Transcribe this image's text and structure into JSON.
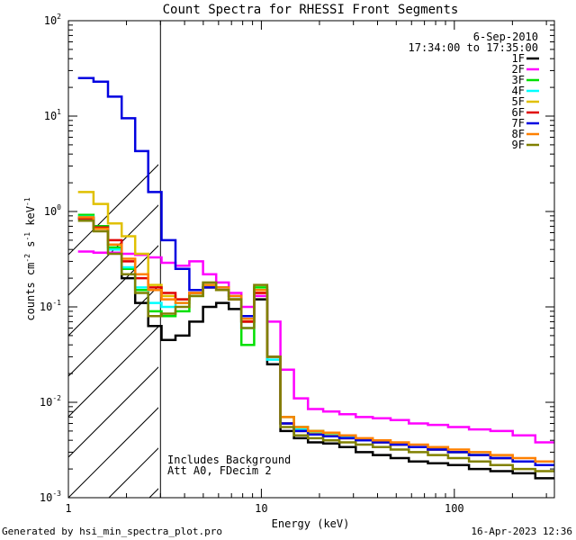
{
  "chart_data": {
    "type": "line",
    "title": "Count Spectra for RHESSI Front Segments",
    "xlabel": "Energy (keV)",
    "ylabel": "counts cm",
    "ylabel_sup1": "-2",
    "ylabel_mid": " s",
    "ylabel_sup2": "-1",
    "ylabel_end": " keV",
    "ylabel_sup3": "-1",
    "x_scale": "log",
    "y_scale": "log",
    "xlim": [
      1,
      330
    ],
    "ylim": [
      0.001,
      100
    ],
    "x_ticks": [
      {
        "value": 1,
        "label": "1"
      },
      {
        "value": 10,
        "label": "10"
      },
      {
        "value": 100,
        "label": "100"
      }
    ],
    "y_ticks": [
      {
        "value": 0.001,
        "base": "10",
        "exp": "-3"
      },
      {
        "value": 0.01,
        "base": "10",
        "exp": "-2"
      },
      {
        "value": 0.1,
        "base": "10",
        "exp": "-1"
      },
      {
        "value": 1,
        "base": "10",
        "exp": "0"
      },
      {
        "value": 10,
        "base": "10",
        "exp": "1"
      },
      {
        "value": 100,
        "base": "10",
        "exp": "2"
      }
    ],
    "hatch_region": [
      1,
      3
    ],
    "date_label": "6-Sep-2010",
    "time_label": "17:34:00 to 17:35:00",
    "annotations": [
      "Includes Background",
      "Att A0, FDecim 2"
    ],
    "footer_left": "Generated by hsi_min_spectra_plot.pro",
    "footer_right": "16-Apr-2023 12:36",
    "legend_position": "top-right",
    "series": [
      {
        "name": "1F",
        "color": "#000000",
        "values": [
          [
            1.23,
            0.85
          ],
          [
            1.48,
            0.7
          ],
          [
            1.74,
            0.45
          ],
          [
            2.05,
            0.2
          ],
          [
            2.4,
            0.11
          ],
          [
            2.8,
            0.063
          ],
          [
            3.3,
            0.045
          ],
          [
            3.9,
            0.05
          ],
          [
            4.6,
            0.07
          ],
          [
            5.4,
            0.1
          ],
          [
            6.3,
            0.11
          ],
          [
            7.3,
            0.095
          ],
          [
            8.5,
            0.07
          ],
          [
            9.9,
            0.12
          ],
          [
            11.6,
            0.025
          ],
          [
            13.6,
            0.005
          ],
          [
            16,
            0.0042
          ],
          [
            19,
            0.0038
          ],
          [
            23,
            0.0037
          ],
          [
            28,
            0.0034
          ],
          [
            34,
            0.003
          ],
          [
            42,
            0.0028
          ],
          [
            52,
            0.0026
          ],
          [
            65,
            0.0024
          ],
          [
            82,
            0.0023
          ],
          [
            105,
            0.0022
          ],
          [
            135,
            0.002
          ],
          [
            175,
            0.0019
          ],
          [
            230,
            0.0018
          ],
          [
            300,
            0.0016
          ]
        ]
      },
      {
        "name": "2F",
        "color": "#ff00ff",
        "values": [
          [
            1.23,
            0.38
          ],
          [
            1.48,
            0.37
          ],
          [
            1.74,
            0.37
          ],
          [
            2.05,
            0.36
          ],
          [
            2.4,
            0.35
          ],
          [
            2.8,
            0.33
          ],
          [
            3.3,
            0.29
          ],
          [
            3.9,
            0.27
          ],
          [
            4.6,
            0.3
          ],
          [
            5.4,
            0.22
          ],
          [
            6.3,
            0.18
          ],
          [
            7.3,
            0.14
          ],
          [
            8.5,
            0.1
          ],
          [
            9.9,
            0.13
          ],
          [
            11.6,
            0.07
          ],
          [
            13.6,
            0.022
          ],
          [
            16,
            0.011
          ],
          [
            19,
            0.0085
          ],
          [
            23,
            0.008
          ],
          [
            28,
            0.0075
          ],
          [
            34,
            0.007
          ],
          [
            42,
            0.0068
          ],
          [
            52,
            0.0065
          ],
          [
            65,
            0.006
          ],
          [
            82,
            0.0058
          ],
          [
            105,
            0.0055
          ],
          [
            135,
            0.0052
          ],
          [
            175,
            0.005
          ],
          [
            230,
            0.0045
          ],
          [
            300,
            0.0038
          ]
        ]
      },
      {
        "name": "3F",
        "color": "#00e000",
        "values": [
          [
            1.23,
            0.92
          ],
          [
            1.48,
            0.7
          ],
          [
            1.74,
            0.42
          ],
          [
            2.05,
            0.25
          ],
          [
            2.4,
            0.15
          ],
          [
            2.8,
            0.09
          ],
          [
            3.3,
            0.08
          ],
          [
            3.9,
            0.09
          ],
          [
            4.6,
            0.13
          ],
          [
            5.4,
            0.16
          ],
          [
            6.3,
            0.15
          ],
          [
            7.3,
            0.12
          ],
          [
            8.5,
            0.04
          ],
          [
            9.9,
            0.16
          ],
          [
            11.6,
            0.03
          ],
          [
            13.6,
            0.007
          ],
          [
            16,
            0.0055
          ],
          [
            19,
            0.005
          ],
          [
            23,
            0.0047
          ],
          [
            28,
            0.0044
          ],
          [
            34,
            0.004
          ],
          [
            42,
            0.0038
          ],
          [
            52,
            0.0036
          ],
          [
            65,
            0.0034
          ],
          [
            82,
            0.0032
          ],
          [
            105,
            0.003
          ],
          [
            135,
            0.0028
          ],
          [
            175,
            0.0026
          ],
          [
            230,
            0.0024
          ],
          [
            300,
            0.0022
          ]
        ]
      },
      {
        "name": "4F",
        "color": "#00ffff",
        "values": [
          [
            1.23,
            0.88
          ],
          [
            1.48,
            0.68
          ],
          [
            1.74,
            0.4
          ],
          [
            2.05,
            0.26
          ],
          [
            2.4,
            0.16
          ],
          [
            2.8,
            0.11
          ],
          [
            3.3,
            0.1
          ],
          [
            3.9,
            0.11
          ],
          [
            4.6,
            0.14
          ],
          [
            5.4,
            0.17
          ],
          [
            6.3,
            0.16
          ],
          [
            7.3,
            0.13
          ],
          [
            8.5,
            0.06
          ],
          [
            9.9,
            0.15
          ],
          [
            11.6,
            0.028
          ],
          [
            13.6,
            0.006
          ],
          [
            16,
            0.0052
          ],
          [
            19,
            0.0048
          ],
          [
            23,
            0.0046
          ],
          [
            28,
            0.0043
          ],
          [
            34,
            0.004
          ],
          [
            42,
            0.0038
          ],
          [
            52,
            0.0036
          ],
          [
            65,
            0.0034
          ],
          [
            82,
            0.0032
          ],
          [
            105,
            0.003
          ],
          [
            135,
            0.0028
          ],
          [
            175,
            0.0026
          ],
          [
            230,
            0.0024
          ],
          [
            300,
            0.0022
          ]
        ]
      },
      {
        "name": "5F",
        "color": "#e0c000",
        "values": [
          [
            1.23,
            1.6
          ],
          [
            1.48,
            1.2
          ],
          [
            1.74,
            0.75
          ],
          [
            2.05,
            0.55
          ],
          [
            2.4,
            0.36
          ],
          [
            2.8,
            0.17
          ],
          [
            3.3,
            0.13
          ],
          [
            3.9,
            0.12
          ],
          [
            4.6,
            0.14
          ],
          [
            5.4,
            0.16
          ],
          [
            6.3,
            0.15
          ],
          [
            7.3,
            0.12
          ],
          [
            8.5,
            0.07
          ],
          [
            9.9,
            0.14
          ],
          [
            11.6,
            0.03
          ],
          [
            13.6,
            0.006
          ],
          [
            16,
            0.005
          ],
          [
            19,
            0.0047
          ],
          [
            23,
            0.0045
          ],
          [
            28,
            0.0042
          ],
          [
            34,
            0.004
          ],
          [
            42,
            0.0038
          ],
          [
            52,
            0.0036
          ],
          [
            65,
            0.0034
          ],
          [
            82,
            0.0032
          ],
          [
            105,
            0.003
          ],
          [
            135,
            0.0028
          ],
          [
            175,
            0.0026
          ],
          [
            230,
            0.0024
          ],
          [
            300,
            0.0022
          ]
        ]
      },
      {
        "name": "6F",
        "color": "#e00000",
        "values": [
          [
            1.23,
            0.85
          ],
          [
            1.48,
            0.68
          ],
          [
            1.74,
            0.5
          ],
          [
            2.05,
            0.3
          ],
          [
            2.4,
            0.2
          ],
          [
            2.8,
            0.16
          ],
          [
            3.3,
            0.14
          ],
          [
            3.9,
            0.12
          ],
          [
            4.6,
            0.14
          ],
          [
            5.4,
            0.16
          ],
          [
            6.3,
            0.15
          ],
          [
            7.3,
            0.12
          ],
          [
            8.5,
            0.07
          ],
          [
            9.9,
            0.14
          ],
          [
            11.6,
            0.03
          ],
          [
            13.6,
            0.006
          ],
          [
            16,
            0.005
          ],
          [
            19,
            0.0046
          ],
          [
            23,
            0.0044
          ],
          [
            28,
            0.0042
          ],
          [
            34,
            0.004
          ],
          [
            42,
            0.0038
          ],
          [
            52,
            0.0036
          ],
          [
            65,
            0.0034
          ],
          [
            82,
            0.0032
          ],
          [
            105,
            0.003
          ],
          [
            135,
            0.0028
          ],
          [
            175,
            0.0026
          ],
          [
            230,
            0.0024
          ],
          [
            300,
            0.0022
          ]
        ]
      },
      {
        "name": "7F",
        "color": "#0000e0",
        "values": [
          [
            1.23,
            25
          ],
          [
            1.48,
            23
          ],
          [
            1.74,
            16
          ],
          [
            2.05,
            9.5
          ],
          [
            2.4,
            4.3
          ],
          [
            2.8,
            1.6
          ],
          [
            3.3,
            0.5
          ],
          [
            3.9,
            0.25
          ],
          [
            4.6,
            0.15
          ],
          [
            5.4,
            0.16
          ],
          [
            6.3,
            0.16
          ],
          [
            7.3,
            0.13
          ],
          [
            8.5,
            0.08
          ],
          [
            9.9,
            0.15
          ],
          [
            11.6,
            0.03
          ],
          [
            13.6,
            0.006
          ],
          [
            16,
            0.005
          ],
          [
            19,
            0.0046
          ],
          [
            23,
            0.0044
          ],
          [
            28,
            0.0042
          ],
          [
            34,
            0.004
          ],
          [
            42,
            0.0038
          ],
          [
            52,
            0.0036
          ],
          [
            65,
            0.0034
          ],
          [
            82,
            0.0032
          ],
          [
            105,
            0.003
          ],
          [
            135,
            0.0028
          ],
          [
            175,
            0.0026
          ],
          [
            230,
            0.0024
          ],
          [
            300,
            0.0022
          ]
        ]
      },
      {
        "name": "8F",
        "color": "#ff8000",
        "values": [
          [
            1.23,
            0.87
          ],
          [
            1.48,
            0.66
          ],
          [
            1.74,
            0.45
          ],
          [
            2.05,
            0.32
          ],
          [
            2.4,
            0.22
          ],
          [
            2.8,
            0.15
          ],
          [
            3.3,
            0.12
          ],
          [
            3.9,
            0.11
          ],
          [
            4.6,
            0.14
          ],
          [
            5.4,
            0.17
          ],
          [
            6.3,
            0.16
          ],
          [
            7.3,
            0.13
          ],
          [
            8.5,
            0.075
          ],
          [
            9.9,
            0.15
          ],
          [
            11.6,
            0.03
          ],
          [
            13.6,
            0.007
          ],
          [
            16,
            0.0055
          ],
          [
            19,
            0.005
          ],
          [
            23,
            0.0048
          ],
          [
            28,
            0.0045
          ],
          [
            34,
            0.0042
          ],
          [
            42,
            0.004
          ],
          [
            52,
            0.0038
          ],
          [
            65,
            0.0036
          ],
          [
            82,
            0.0034
          ],
          [
            105,
            0.0032
          ],
          [
            135,
            0.003
          ],
          [
            175,
            0.0028
          ],
          [
            230,
            0.0026
          ],
          [
            300,
            0.0024
          ]
        ]
      },
      {
        "name": "9F",
        "color": "#808000",
        "values": [
          [
            1.23,
            0.8
          ],
          [
            1.48,
            0.62
          ],
          [
            1.74,
            0.36
          ],
          [
            2.05,
            0.22
          ],
          [
            2.4,
            0.14
          ],
          [
            2.8,
            0.08
          ],
          [
            3.3,
            0.085
          ],
          [
            3.9,
            0.1
          ],
          [
            4.6,
            0.13
          ],
          [
            5.4,
            0.18
          ],
          [
            6.3,
            0.15
          ],
          [
            7.3,
            0.12
          ],
          [
            8.5,
            0.06
          ],
          [
            9.9,
            0.17
          ],
          [
            11.6,
            0.03
          ],
          [
            13.6,
            0.0055
          ],
          [
            16,
            0.0045
          ],
          [
            19,
            0.0042
          ],
          [
            23,
            0.004
          ],
          [
            28,
            0.0038
          ],
          [
            34,
            0.0036
          ],
          [
            42,
            0.0034
          ],
          [
            52,
            0.0032
          ],
          [
            65,
            0.003
          ],
          [
            82,
            0.0028
          ],
          [
            105,
            0.0026
          ],
          [
            135,
            0.0024
          ],
          [
            175,
            0.0022
          ],
          [
            230,
            0.002
          ],
          [
            300,
            0.0019
          ]
        ]
      }
    ]
  }
}
